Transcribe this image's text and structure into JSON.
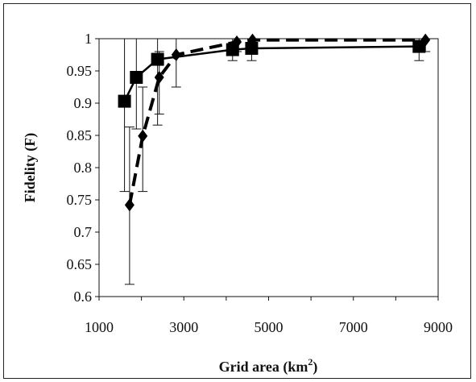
{
  "chart_data": {
    "type": "line",
    "title": "",
    "xlabel": "Grid area (km",
    "xlabel_sup": "2",
    "xlabel_end": ")",
    "ylabel": "Fidelity (F)",
    "xlim": [
      1000,
      9000
    ],
    "ylim": [
      0.6,
      1.0
    ],
    "x_ticks": [
      1000,
      3000,
      5000,
      7000,
      9000
    ],
    "x_minor_ticks": [
      1000,
      2000,
      3000,
      4000,
      5000,
      6000,
      7000,
      8000,
      9000
    ],
    "y_ticks": [
      0.6,
      0.65,
      0.7,
      0.75,
      0.8,
      0.85,
      0.9,
      0.95,
      1.0
    ],
    "x_tick_labels": [
      "1000",
      "3000",
      "5000",
      "7000",
      "9000"
    ],
    "y_tick_labels": [
      "0.6",
      "0.65",
      "0.7",
      "0.75",
      "0.8",
      "0.85",
      "0.9",
      "0.95",
      "1"
    ],
    "grid": false,
    "series": [
      {
        "marker": "square",
        "line_style": "solid",
        "color": "#000000",
        "x": [
          1600,
          1880,
          2380,
          4150,
          4600,
          8550
        ],
        "y": [
          0.903,
          0.94,
          0.968,
          0.983,
          0.985,
          0.988
        ],
        "err_low": [
          0.763,
          0.86,
          0.866,
          0.966,
          0.966,
          0.966
        ],
        "err_high": [
          1.0,
          1.0,
          1.0,
          1.0,
          1.0,
          1.0
        ]
      },
      {
        "marker": "diamond",
        "line_style": "dashed",
        "color": "#000000",
        "x": [
          1720,
          2030,
          2420,
          2820,
          4250,
          4620,
          8700
        ],
        "y": [
          0.742,
          0.849,
          0.94,
          0.975,
          0.995,
          0.998,
          0.998
        ],
        "err_low": [
          0.619,
          0.763,
          0.883,
          0.925,
          0.98,
          0.98,
          0.98
        ],
        "err_high": [
          0.863,
          0.925,
          0.98,
          1.0,
          1.0,
          1.0,
          1.0
        ]
      }
    ]
  }
}
